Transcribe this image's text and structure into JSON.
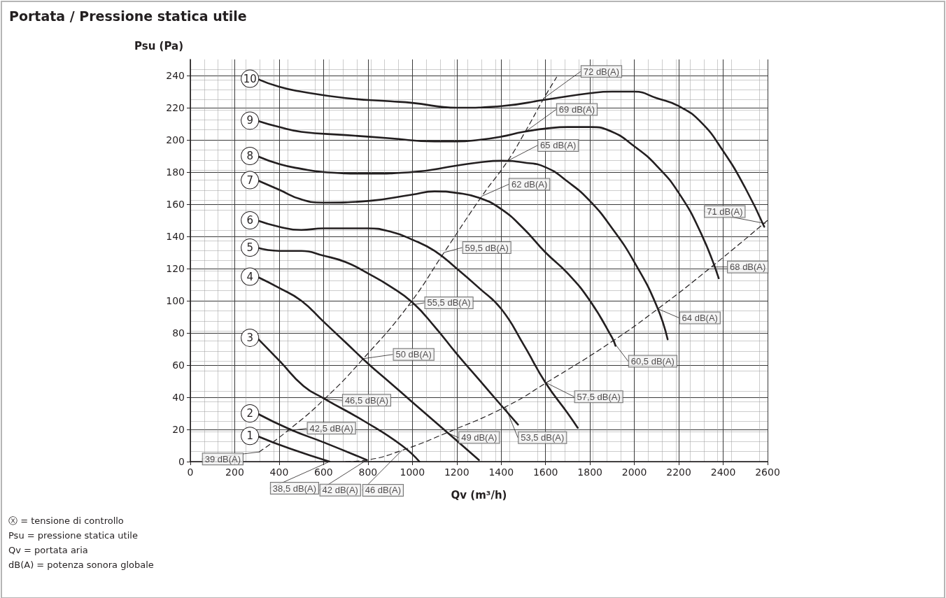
{
  "chart_data": {
    "type": "line",
    "title": "Portata / Pressione statica utile",
    "xlabel": "Qv (m³/h)",
    "ylabel": "Psu (Pa)",
    "xlim": [
      0,
      2600
    ],
    "xticks": [
      0,
      200,
      400,
      600,
      800,
      1000,
      1200,
      1400,
      1600,
      1800,
      2000,
      2200,
      2400,
      2600
    ],
    "ylim": [
      0,
      250
    ],
    "yticks": [
      0,
      20,
      40,
      60,
      80,
      100,
      120,
      140,
      160,
      180,
      200,
      220,
      240
    ],
    "grid": true,
    "legend": "left",
    "marker": "none",
    "line_style": "solid",
    "series": [
      {
        "name": "1",
        "color": "#231f20",
        "x": [
          300,
          450,
          627
        ],
        "values": [
          16,
          8,
          0
        ]
      },
      {
        "name": "2",
        "color": "#231f20",
        "x": [
          300,
          450,
          600,
          795
        ],
        "values": [
          30,
          20,
          12,
          1
        ]
      },
      {
        "name": "3",
        "color": "#231f20",
        "x": [
          300,
          406,
          510,
          605,
          785,
          953,
          1032
        ],
        "values": [
          77,
          62,
          47,
          39,
          25,
          10,
          0
        ]
      },
      {
        "name": "4",
        "color": "#231f20",
        "x": [
          300,
          400,
          500,
          600,
          700,
          800,
          900,
          1000,
          1100,
          1200,
          1300
        ],
        "values": [
          115,
          108,
          100,
          87,
          74,
          61,
          49,
          37,
          25,
          13,
          1
        ]
      },
      {
        "name": "5",
        "color": "#231f20",
        "x": [
          300,
          400,
          500,
          600,
          700,
          800,
          900,
          1000,
          1100,
          1200,
          1300,
          1400,
          1476
        ],
        "values": [
          133,
          131,
          131,
          128,
          124,
          117,
          109,
          99,
          84,
          67,
          51,
          35,
          23
        ]
      },
      {
        "name": "6",
        "color": "#231f20",
        "x": [
          300,
          400,
          500,
          600,
          800,
          900,
          1000,
          1100,
          1200,
          1300,
          1400,
          1500,
          1600,
          1700,
          1745
        ],
        "values": [
          150,
          146,
          144,
          145,
          145,
          143,
          138,
          131,
          120,
          108,
          95,
          73,
          49,
          30,
          21
        ]
      },
      {
        "name": "7",
        "color": "#231f20",
        "x": [
          300,
          400,
          500,
          600,
          800,
          1000,
          1100,
          1200,
          1300,
          1400,
          1500,
          1600,
          1700,
          1800,
          1900,
          1915
        ],
        "values": [
          175,
          169,
          163,
          161,
          162,
          166,
          168,
          167,
          164,
          157,
          145,
          130,
          117,
          100,
          77,
          72
        ]
      },
      {
        "name": "8",
        "color": "#231f20",
        "x": [
          300,
          400,
          500,
          600,
          800,
          1000,
          1200,
          1300,
          1400,
          1500,
          1600,
          1700,
          1800,
          1900,
          2000,
          2100,
          2150
        ],
        "values": [
          190,
          185,
          182,
          180,
          179,
          180,
          184,
          186,
          187,
          186,
          183,
          174,
          162,
          145,
          124,
          97,
          76
        ]
      },
      {
        "name": "9",
        "color": "#231f20",
        "x": [
          300,
          400,
          500,
          700,
          900,
          1100,
          1200,
          1300,
          1400,
          1500,
          1600,
          1700,
          1800,
          1900,
          2000,
          2100,
          2200,
          2300,
          2380
        ],
        "values": [
          212,
          208,
          205,
          203,
          201,
          199,
          199,
          200,
          202,
          205,
          207,
          208,
          208,
          205,
          196,
          184,
          167,
          142,
          114
        ]
      },
      {
        "name": "10",
        "color": "#231f20",
        "x": [
          300,
          400,
          500,
          700,
          900,
          1000,
          1200,
          1400,
          1600,
          1800,
          1900,
          2000,
          2100,
          2200,
          2300,
          2400,
          2500,
          2585
        ],
        "values": [
          238,
          233,
          230,
          226,
          224,
          223,
          220,
          221,
          225,
          229,
          230,
          230,
          226,
          221,
          211,
          193,
          170,
          146
        ]
      },
      {
        "color": "#231f20",
        "line_style": "dashed",
        "x": [
          310,
          437,
          605,
          779,
          982,
          1143,
          1313,
          1430,
          1508,
          1593,
          1650
        ],
        "values": [
          6,
          19,
          39,
          64,
          97,
          130,
          165,
          187,
          205,
          226,
          239
        ]
      },
      {
        "color": "#231f20",
        "line_style": "dashed",
        "x": [
          700,
          795,
          953,
          1156,
          1419,
          1603,
          1903,
          2106,
          2347,
          2600
        ],
        "values": [
          0,
          1,
          7,
          18,
          34,
          49,
          75,
          95,
          121,
          150
        ]
      }
    ],
    "annotations": [
      {
        "text": "39 dB(A)",
        "x": 310,
        "y": 6
      },
      {
        "text": "42,5 dB(A)",
        "x": 437,
        "y": 19
      },
      {
        "text": "46,5 dB(A)",
        "x": 605,
        "y": 39
      },
      {
        "text": "50 dB(A)",
        "x": 779,
        "y": 64
      },
      {
        "text": "55,5 dB(A)",
        "x": 982,
        "y": 97
      },
      {
        "text": "59,5 dB(A)",
        "x": 1143,
        "y": 130
      },
      {
        "text": "62 dB(A)",
        "x": 1313,
        "y": 165
      },
      {
        "text": "65 dB(A)",
        "x": 1430,
        "y": 187
      },
      {
        "text": "69 dB(A)",
        "x": 1508,
        "y": 205
      },
      {
        "text": "72 dB(A)",
        "x": 1593,
        "y": 226
      },
      {
        "text": "38,5 dB(A)",
        "x": 627,
        "y": 0
      },
      {
        "text": "42 dB(A)",
        "x": 795,
        "y": 1
      },
      {
        "text": "46 dB(A)",
        "x": 953,
        "y": 7
      },
      {
        "text": "49 dB(A)",
        "x": 1156,
        "y": 18
      },
      {
        "text": "53,5 dB(A)",
        "x": 1419,
        "y": 34
      },
      {
        "text": "57,5 dB(A)",
        "x": 1603,
        "y": 49
      },
      {
        "text": "60,5 dB(A)",
        "x": 1903,
        "y": 75
      },
      {
        "text": "64 dB(A)",
        "x": 2106,
        "y": 95
      },
      {
        "text": "68 dB(A)",
        "x": 2347,
        "y": 121
      },
      {
        "text": "71 dB(A)",
        "x": 2590,
        "y": 148
      },
      "ⓧ = tensione di controllo",
      "Psu = pressione statica utile",
      "Qv = portata aria",
      "dB(A) = potenza sonora globale"
    ]
  }
}
